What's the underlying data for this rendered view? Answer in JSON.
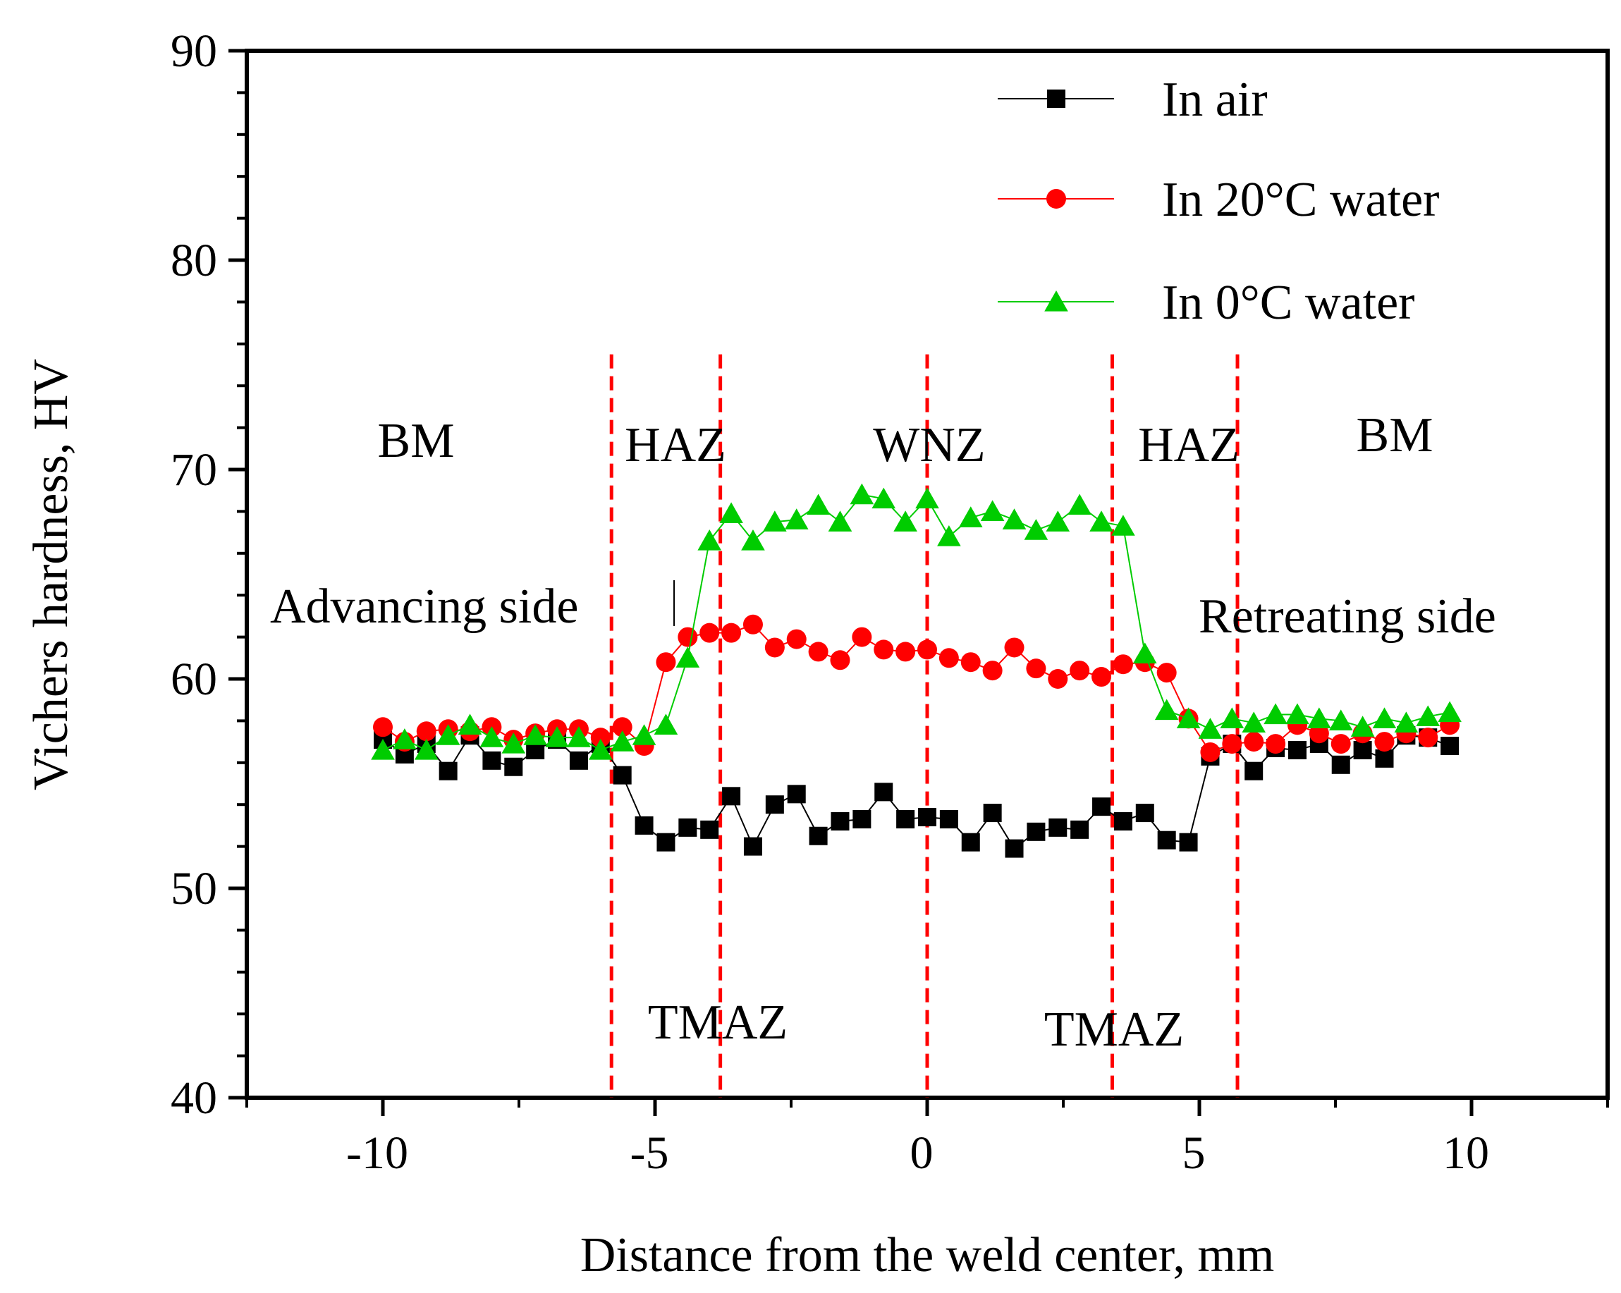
{
  "chart_data": {
    "type": "line",
    "title": "",
    "xlabel": "Distance from the weld center, mm",
    "ylabel": "Vichers hardness, HV",
    "xlim": [
      -12.5,
      12.5
    ],
    "ylim": [
      40,
      90
    ],
    "xticks": [
      "-10",
      "-5",
      "0",
      "5",
      "10"
    ],
    "xtick_values": [
      -10,
      -5,
      0,
      5,
      10
    ],
    "yticks": [
      "40",
      "50",
      "60",
      "70",
      "80",
      "90"
    ],
    "ytick_values": [
      40,
      50,
      60,
      70,
      80,
      90
    ],
    "grid": false,
    "legend_position": "top-right",
    "zone_boundaries": [
      -5.8,
      -3.8,
      0,
      3.4,
      5.7
    ],
    "zone_line_color": "#ff0000",
    "annotations": {
      "bm_left": "BM",
      "haz_left": "HAZ",
      "wnz": "WNZ",
      "haz_right": "HAZ",
      "bm_right": "BM",
      "advancing": "Advancing side",
      "retreating": "Retreating side",
      "tmaz_left": "TMAZ",
      "tmaz_right": "TMAZ"
    },
    "x": [
      -10.0,
      -9.6,
      -9.2,
      -8.8,
      -8.4,
      -8.0,
      -7.6,
      -7.2,
      -6.8,
      -6.4,
      -6.0,
      -5.6,
      -5.2,
      -4.8,
      -4.4,
      -4.0,
      -3.6,
      -3.2,
      -2.8,
      -2.4,
      -2.0,
      -1.6,
      -1.2,
      -0.8,
      -0.4,
      0.0,
      0.4,
      0.8,
      1.2,
      1.6,
      2.0,
      2.4,
      2.8,
      3.2,
      3.6,
      4.0,
      4.4,
      4.8,
      5.2,
      5.6,
      6.0,
      6.4,
      6.8,
      7.2,
      7.6,
      8.0,
      8.4,
      8.8,
      9.2,
      9.6
    ],
    "series": [
      {
        "name": "In air",
        "color": "#000000",
        "marker": "square",
        "values": [
          57.1,
          56.4,
          56.9,
          55.6,
          57.3,
          56.1,
          55.8,
          56.6,
          57.1,
          56.1,
          56.9,
          55.4,
          53.0,
          52.2,
          52.9,
          52.8,
          54.4,
          52.0,
          54.0,
          54.5,
          52.5,
          53.2,
          53.3,
          54.6,
          53.3,
          53.4,
          53.3,
          52.2,
          53.6,
          51.9,
          52.7,
          52.9,
          52.8,
          53.9,
          53.2,
          53.6,
          52.3,
          52.2,
          56.3,
          56.9,
          55.6,
          56.7,
          56.6,
          56.9,
          55.9,
          56.6,
          56.2,
          57.3,
          57.2,
          56.8
        ]
      },
      {
        "name": "In 20°C water",
        "color": "#ff0000",
        "marker": "circle",
        "values": [
          57.7,
          57.0,
          57.5,
          57.6,
          57.5,
          57.7,
          57.1,
          57.4,
          57.6,
          57.6,
          57.2,
          57.7,
          56.8,
          60.8,
          62.0,
          62.2,
          62.2,
          62.6,
          61.5,
          61.9,
          61.3,
          60.9,
          62.0,
          61.4,
          61.3,
          61.4,
          61.0,
          60.8,
          60.4,
          61.5,
          60.5,
          60.0,
          60.4,
          60.1,
          60.7,
          60.8,
          60.3,
          58.1,
          56.5,
          56.9,
          57.0,
          56.9,
          57.8,
          57.4,
          56.9,
          57.4,
          57.0,
          57.4,
          57.2,
          57.8
        ]
      },
      {
        "name": "In 0°C water",
        "color": "#00cc00",
        "marker": "triangle",
        "values": [
          56.6,
          57.1,
          56.6,
          57.3,
          57.8,
          57.2,
          56.9,
          57.3,
          57.2,
          57.2,
          56.6,
          57.0,
          57.3,
          57.8,
          61.0,
          66.6,
          67.9,
          66.6,
          67.5,
          67.6,
          68.3,
          67.5,
          68.8,
          68.6,
          67.5,
          68.6,
          66.8,
          67.7,
          68.0,
          67.6,
          67.1,
          67.5,
          68.3,
          67.5,
          67.3,
          61.2,
          58.5,
          58.1,
          57.6,
          58.1,
          57.9,
          58.3,
          58.3,
          58.1,
          58.0,
          57.7,
          58.1,
          57.9,
          58.2,
          58.4
        ]
      }
    ]
  }
}
